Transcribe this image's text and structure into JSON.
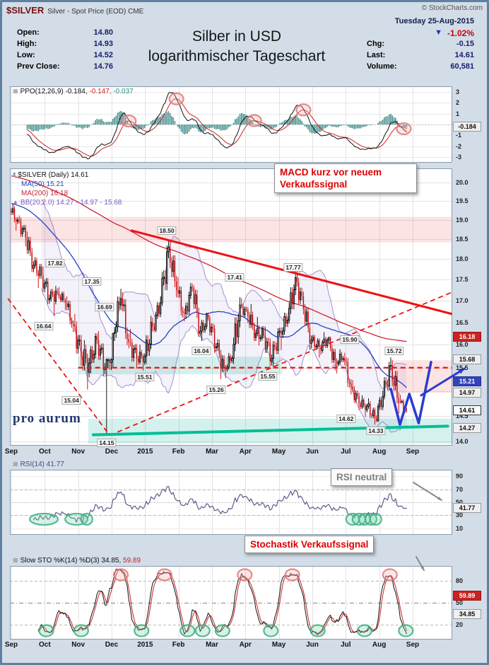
{
  "header": {
    "symbol": "$SILVER",
    "description": "Silver - Spot Price (EOD) CME",
    "copyright": "© StockCharts.com",
    "date": "Tuesday 25-Aug-2015",
    "quote": {
      "open_label": "Open:",
      "open": "14.80",
      "high_label": "High:",
      "high": "14.93",
      "low_label": "Low:",
      "low": "14.52",
      "prev_close_label": "Prev Close:",
      "prev_close": "14.76"
    },
    "title_line1": "Silber in USD",
    "title_line2": "logarithmischer Tageschart",
    "down_triangle": "▼",
    "change_pct": "-1.02%",
    "chg_label": "Chg:",
    "chg": "-0.15",
    "last_label": "Last:",
    "last": "14.61",
    "volume_label": "Volume:",
    "volume": "60,581"
  },
  "panels": {
    "ppo": {
      "icon": "▦",
      "label": "PPO(12,26,9)",
      "v1": "-0.184,",
      "v2": "-0.147,",
      "v3": "-0.037",
      "tag": "-0.184",
      "tag_val": -0.184,
      "yticks": [
        3,
        2,
        1,
        0,
        -1,
        -2,
        -3
      ],
      "annotation": "MACD kurz vor neuem Verkaufssignal"
    },
    "price": {
      "icon": "▮",
      "legend": "$SILVER (Daily) 14.61",
      "ma50": "MA(50) 15.21",
      "ma200": "MA(200) 16.18",
      "bb_icon": "▲",
      "bb": "BB(20,2.0) 14.27 - 14.97 - 15.68",
      "watermark": "pro aurum",
      "yticks": [
        {
          "label": "20.0",
          "value": 20.0
        },
        {
          "label": "19.5",
          "value": 19.5
        },
        {
          "label": "19.0",
          "value": 19.0
        },
        {
          "label": "18.5",
          "value": 18.5
        },
        {
          "label": "18.0",
          "value": 18.0
        },
        {
          "label": "17.5",
          "value": 17.5
        },
        {
          "label": "17.0",
          "value": 17.0
        },
        {
          "label": "16.5",
          "value": 16.5
        },
        {
          "label": "16.0",
          "value": 16.0
        },
        {
          "label": "15.5",
          "value": 15.5
        },
        {
          "label": "14.5",
          "value": 14.5
        },
        {
          "label": "14.0",
          "value": 14.0
        }
      ],
      "tags": [
        {
          "t": "16.18",
          "p": 16.18,
          "s": "red"
        },
        {
          "t": "15.68",
          "p": 15.68,
          "s": "gray"
        },
        {
          "t": "15.21",
          "p": 15.21,
          "s": "blue"
        },
        {
          "t": "14.97",
          "p": 14.97,
          "s": "gray"
        },
        {
          "t": "14.61",
          "p": 14.61,
          "s": "last"
        },
        {
          "t": "14.27",
          "p": 14.27,
          "s": "gray"
        }
      ],
      "callouts": [
        {
          "t": "17.82",
          "m": 1.31,
          "p": 17.9
        },
        {
          "t": "16.64",
          "m": 0.97,
          "p": 16.42
        },
        {
          "t": "17.35",
          "m": 2.41,
          "p": 17.45
        },
        {
          "t": "16.69",
          "m": 2.79,
          "p": 16.85
        },
        {
          "t": "15.04",
          "m": 1.8,
          "p": 14.82
        },
        {
          "t": "14.15",
          "m": 2.85,
          "p": 13.97
        },
        {
          "t": "18.50",
          "m": 4.65,
          "p": 18.72
        },
        {
          "t": "16.04",
          "m": 5.68,
          "p": 15.86
        },
        {
          "t": "15.51",
          "m": 3.99,
          "p": 15.3
        },
        {
          "t": "15.26",
          "m": 6.13,
          "p": 15.04
        },
        {
          "t": "17.41",
          "m": 6.68,
          "p": 17.55
        },
        {
          "t": "15.55",
          "m": 7.67,
          "p": 15.31
        },
        {
          "t": "17.77",
          "m": 8.43,
          "p": 17.8
        },
        {
          "t": "15.90",
          "m": 10.12,
          "p": 16.11
        },
        {
          "t": "14.62",
          "m": 10.01,
          "p": 14.45
        },
        {
          "t": "14.33",
          "m": 10.9,
          "p": 14.21
        },
        {
          "t": "15.72",
          "m": 11.45,
          "p": 15.87
        }
      ]
    },
    "rsi": {
      "icon": "▦",
      "label": "RSI(14) 41.77",
      "tag": "41.77",
      "tag_val": 41.77,
      "yticks": [
        90,
        70,
        50,
        30,
        10
      ],
      "annotation": "RSI neutral"
    },
    "stoch": {
      "icon": "▦",
      "label": "Slow STO %K(14) %D(3)",
      "k": "34.85,",
      "d": "59.89",
      "tags": [
        {
          "t": "59.89",
          "v": 59.89,
          "s": "red"
        },
        {
          "t": "34.85",
          "v": 34.85,
          "s": "gray"
        }
      ],
      "yticks": [
        80,
        50,
        20
      ],
      "annotation": "Stochastik Verkaufssignal"
    }
  },
  "xaxis": {
    "months": [
      "Sep",
      "Oct",
      "Nov",
      "Dec",
      "2015",
      "Feb",
      "Mar",
      "Apr",
      "May",
      "Jun",
      "Jul",
      "Aug",
      "Sep"
    ]
  },
  "colors": {
    "up": "#000000",
    "down": "#cc0000",
    "ma50": "#2244cc",
    "ma200": "#cc2233",
    "bb_line": "rgba(130,100,190,0.7)",
    "bb_fill": "rgba(140,120,200,0.10)",
    "ppo_line": "#111111",
    "signal": "#cc2222",
    "ppo_hist": "#4a9290",
    "rsi_line": "#5b5b8a",
    "stoch_k": "#111111",
    "stoch_d": "#cc2222",
    "trend_red": "#ee1111",
    "support_green": "#00bf95",
    "blue_drawing": "#2b3bd1",
    "pink_zone": "rgba(240,120,120,0.20)",
    "teal_zone": "rgba(0,170,150,0.17)",
    "pink_ring_stroke": "rgba(225,120,120,0.85)",
    "pink_ring_fill": "rgba(245,170,170,0.30)",
    "green_ring_stroke": "rgba(60,175,130,0.85)",
    "green_ring_fill": "rgba(120,210,170,0.30)",
    "frame": "#60809f",
    "panel_border": "#8a9bb0",
    "grid": "#e3e3e3"
  },
  "chart_data": {
    "type": "candlestick",
    "symbol": "$SILVER",
    "title": "Silber in USD logarithmischer Tageschart",
    "y_log_scale": true,
    "ylim": [
      13.92,
      20.4
    ],
    "x_months": [
      "Sep",
      "Oct",
      "Nov",
      "Dec",
      "2015",
      "Feb",
      "Mar",
      "Apr",
      "May",
      "Jun",
      "Jul",
      "Aug",
      "Sep"
    ],
    "last_quote": {
      "open": 14.8,
      "high": 14.93,
      "low": 14.52,
      "close": 14.61,
      "prev_close": 14.76,
      "chg": -0.15,
      "chg_pct": -1.02,
      "volume": 60581
    },
    "overlays": {
      "ma50_last": 15.21,
      "ma200_last": 16.18,
      "bb_last": [
        14.27,
        14.97,
        15.68
      ]
    },
    "indicators": {
      "ppo": {
        "params": "12,26,9",
        "last_line": -0.184,
        "last_signal": -0.147,
        "last_hist": -0.037,
        "ylim": [
          -3.5,
          3.5
        ]
      },
      "rsi": {
        "params": "14",
        "last": 41.77,
        "ylim": [
          0,
          100
        ]
      },
      "stoch": {
        "params": "%K(14) %D(3)",
        "last_k": 34.85,
        "last_d": 59.89,
        "ylim": [
          0,
          100
        ]
      }
    },
    "weekly_ohlc": [
      [
        19.25,
        19.42,
        18.72,
        19.0
      ],
      [
        19.0,
        19.12,
        18.32,
        18.55
      ],
      [
        18.55,
        18.7,
        17.68,
        17.85
      ],
      [
        17.85,
        18.05,
        17.3,
        17.6
      ],
      [
        17.6,
        17.82,
        16.92,
        17.05
      ],
      [
        17.05,
        17.35,
        16.64,
        17.2
      ],
      [
        17.2,
        17.32,
        16.78,
        16.95
      ],
      [
        16.95,
        17.1,
        16.28,
        16.45
      ],
      [
        16.45,
        16.69,
        15.54,
        15.75
      ],
      [
        15.75,
        16.1,
        15.04,
        15.6
      ],
      [
        15.6,
        16.25,
        15.38,
        16.1
      ],
      [
        16.1,
        16.3,
        15.32,
        15.5
      ],
      [
        15.5,
        15.7,
        14.15,
        16.25
      ],
      [
        16.25,
        17.28,
        16.08,
        17.05
      ],
      [
        17.05,
        17.2,
        15.92,
        16.05
      ],
      [
        16.05,
        16.35,
        15.48,
        15.7
      ],
      [
        15.7,
        16.0,
        15.44,
        15.75
      ],
      [
        15.75,
        16.65,
        15.58,
        16.4
      ],
      [
        16.4,
        17.1,
        16.28,
        16.95
      ],
      [
        16.95,
        18.5,
        16.88,
        18.3
      ],
      [
        18.3,
        18.46,
        17.08,
        17.25
      ],
      [
        17.25,
        17.56,
        16.52,
        16.7
      ],
      [
        16.7,
        17.42,
        16.58,
        17.3
      ],
      [
        17.3,
        17.36,
        16.18,
        16.3
      ],
      [
        16.3,
        16.72,
        16.08,
        16.6
      ],
      [
        16.6,
        16.66,
        15.82,
        15.95
      ],
      [
        15.95,
        16.12,
        15.26,
        15.5
      ],
      [
        15.5,
        15.82,
        15.28,
        15.7
      ],
      [
        15.7,
        17.08,
        15.58,
        16.9
      ],
      [
        16.9,
        17.06,
        16.48,
        16.65
      ],
      [
        16.65,
        16.92,
        16.08,
        16.25
      ],
      [
        16.25,
        16.62,
        15.98,
        16.2
      ],
      [
        16.2,
        16.4,
        15.52,
        15.7
      ],
      [
        15.7,
        16.38,
        15.52,
        16.3
      ],
      [
        16.3,
        16.72,
        15.88,
        16.55
      ],
      [
        16.55,
        17.77,
        16.48,
        17.55
      ],
      [
        17.55,
        17.72,
        16.68,
        16.8
      ],
      [
        16.8,
        16.92,
        15.88,
        16.1
      ],
      [
        16.1,
        16.22,
        15.72,
        15.95
      ],
      [
        15.95,
        16.28,
        15.78,
        16.1
      ],
      [
        16.1,
        16.18,
        15.44,
        15.65
      ],
      [
        15.65,
        15.9,
        15.38,
        15.7
      ],
      [
        15.7,
        15.82,
        14.94,
        15.1
      ],
      [
        15.1,
        15.24,
        14.62,
        14.75
      ],
      [
        14.75,
        14.92,
        14.48,
        14.7
      ],
      [
        14.7,
        14.86,
        14.33,
        14.45
      ],
      [
        14.45,
        15.02,
        14.38,
        14.9
      ],
      [
        14.9,
        15.72,
        14.84,
        15.55
      ],
      [
        15.55,
        15.66,
        14.55,
        14.76
      ],
      [
        14.8,
        14.93,
        14.52,
        14.61
      ]
    ],
    "drawings": {
      "bands": [
        {
          "p0": 18.42,
          "p1": 19.08,
          "m0": -0.05,
          "m1": 13.18,
          "c": "pink"
        },
        {
          "p0": 15.36,
          "p1": 15.74,
          "m0": 2.0,
          "m1": 8.1,
          "c": "teal"
        },
        {
          "p0": 13.96,
          "p1": 14.45,
          "m0": 2.3,
          "m1": 13.18,
          "c": "teal"
        },
        {
          "p0": 14.97,
          "p1": 15.66,
          "m0": 11.35,
          "m1": 13.18,
          "c": "pink"
        }
      ],
      "trendlines": [
        {
          "m0": 3.57,
          "p0": 18.73,
          "m1": 13.18,
          "p1": 16.69,
          "w": 3,
          "dash": false
        },
        {
          "m0": 2.0,
          "p0": 15.5,
          "m1": 13.18,
          "p1": 15.5,
          "w": 2.2,
          "dash": true
        },
        {
          "m0": -0.1,
          "p0": 17.05,
          "m1": 2.94,
          "p1": 14.12,
          "w": 1.8,
          "dash": true
        },
        {
          "m0": 2.94,
          "p0": 14.12,
          "m1": 13.18,
          "p1": 17.2,
          "w": 1.8,
          "dash": true
        }
      ],
      "support_line": {
        "m0": 2.45,
        "p0": 14.13,
        "m1": 13.05,
        "p1": 14.3
      },
      "w_pattern": [
        [
          11.35,
          15.05
        ],
        [
          11.62,
          14.33
        ],
        [
          11.9,
          14.95
        ],
        [
          12.18,
          14.36
        ],
        [
          12.55,
          15.62
        ]
      ],
      "arrow_blue": {
        "m0": 12.25,
        "p0": 14.92,
        "m1": 13.55,
        "p1": 15.48
      }
    }
  }
}
